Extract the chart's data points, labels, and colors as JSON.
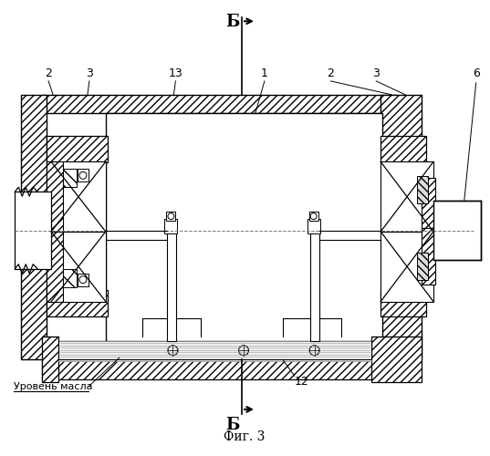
{
  "title": "Фиг. 3",
  "background_color": "#ffffff",
  "line_color": "#000000",
  "figsize": [
    5.37,
    5.0
  ],
  "dpi": 100,
  "labels": {
    "top_B": "Б",
    "bottom_B": "Б",
    "oil_level": "Уровень масла",
    "fig": "Фиг. 3",
    "num_1": "1",
    "num_2_left": "2",
    "num_3_left": "3",
    "num_13": "13",
    "num_2_right": "2",
    "num_3_right": "3",
    "num_6": "6",
    "num_12": "12"
  }
}
